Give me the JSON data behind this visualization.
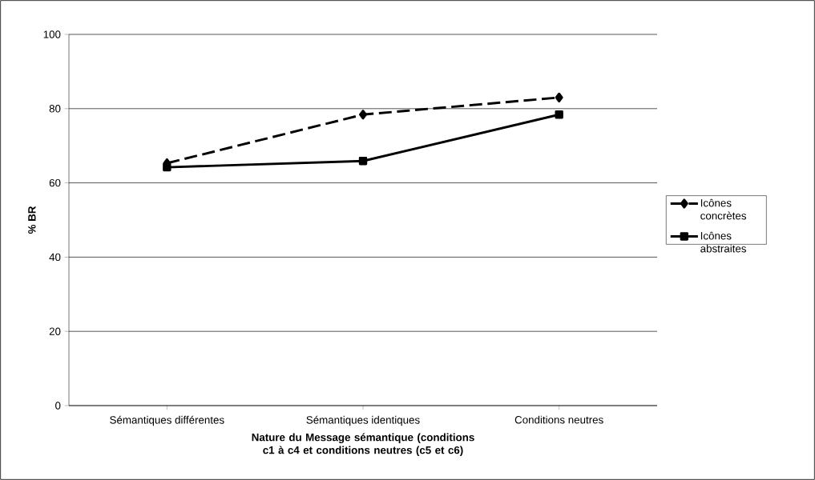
{
  "chart_data": {
    "type": "line",
    "xlabel": "Nature du Message sémantique (conditions c1 à c4 et conditions neutres (c5 et c6)",
    "ylabel": "% BR",
    "categories": [
      "Sémantiques différentes",
      "Sémantiques identiques",
      "Conditions neutres"
    ],
    "series": [
      {
        "name": "Icônes concrètes",
        "color": "#000000",
        "values": [
          65.3,
          78.4,
          83.0
        ],
        "marker": "diamond",
        "line_style": "dashed"
      },
      {
        "name": "Icônes abstraites",
        "color": "#000000",
        "values": [
          64.2,
          65.9,
          78.4
        ],
        "marker": "square",
        "line_style": "solid"
      }
    ],
    "ylim": [
      0,
      100
    ],
    "yticks": [
      0,
      20,
      40,
      60,
      80,
      100
    ],
    "grid": "y",
    "legend": "right"
  }
}
